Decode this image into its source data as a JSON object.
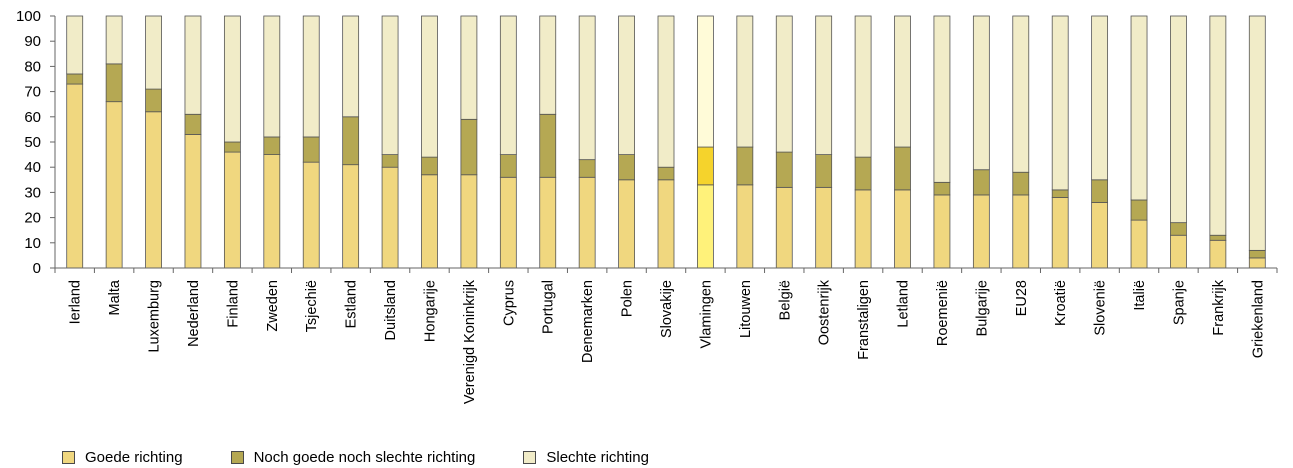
{
  "chart_data": {
    "type": "bar",
    "stacked": true,
    "title": "",
    "xlabel": "",
    "ylabel": "",
    "ylim": [
      0,
      100
    ],
    "yticks": [
      0,
      10,
      20,
      30,
      40,
      50,
      60,
      70,
      80,
      90,
      100
    ],
    "grid": false,
    "legend_position": "bottom-left",
    "categories": [
      "Ierland",
      "Malta",
      "Luxemburg",
      "Nederland",
      "Finland",
      "Zweden",
      "Tsjechië",
      "Estland",
      "Duitsland",
      "Hongarije",
      "Verenigd Koninkrijk",
      "Cyprus",
      "Portugal",
      "Denemarken",
      "Polen",
      "Slovakije",
      "Vlamingen",
      "Litouwen",
      "België",
      "Oostenrijk",
      "Franstaligen",
      "Letland",
      "Roemenië",
      "Bulgarije",
      "EU28",
      "Kroatië",
      "Slovenië",
      "Italië",
      "Spanje",
      "Frankrijk",
      "Griekenland"
    ],
    "highlight_category": "Vlamingen",
    "series": [
      {
        "name": "Goede richting",
        "color": "#f0d77f",
        "highlight_color": "#fff27a",
        "values": [
          73,
          66,
          62,
          53,
          46,
          45,
          42,
          41,
          40,
          37,
          37,
          36,
          36,
          36,
          35,
          35,
          33,
          33,
          32,
          32,
          31,
          31,
          29,
          29,
          29,
          28,
          26,
          19,
          13,
          11,
          4
        ]
      },
      {
        "name": "Noch goede noch slechte richting",
        "color": "#b5a853",
        "highlight_color": "#f5d32c",
        "values": [
          4,
          15,
          9,
          8,
          4,
          7,
          10,
          19,
          5,
          7,
          22,
          9,
          25,
          7,
          10,
          5,
          15,
          15,
          14,
          13,
          13,
          17,
          5,
          10,
          9,
          3,
          9,
          8,
          5,
          2,
          3
        ]
      },
      {
        "name": "Slechte richting",
        "color": "#f1ecc8",
        "highlight_color": "#fffbd8",
        "values": [
          23,
          19,
          29,
          39,
          50,
          48,
          48,
          40,
          55,
          56,
          41,
          55,
          39,
          57,
          55,
          60,
          52,
          52,
          54,
          55,
          56,
          52,
          66,
          61,
          62,
          69,
          65,
          73,
          82,
          87,
          93
        ]
      }
    ]
  }
}
